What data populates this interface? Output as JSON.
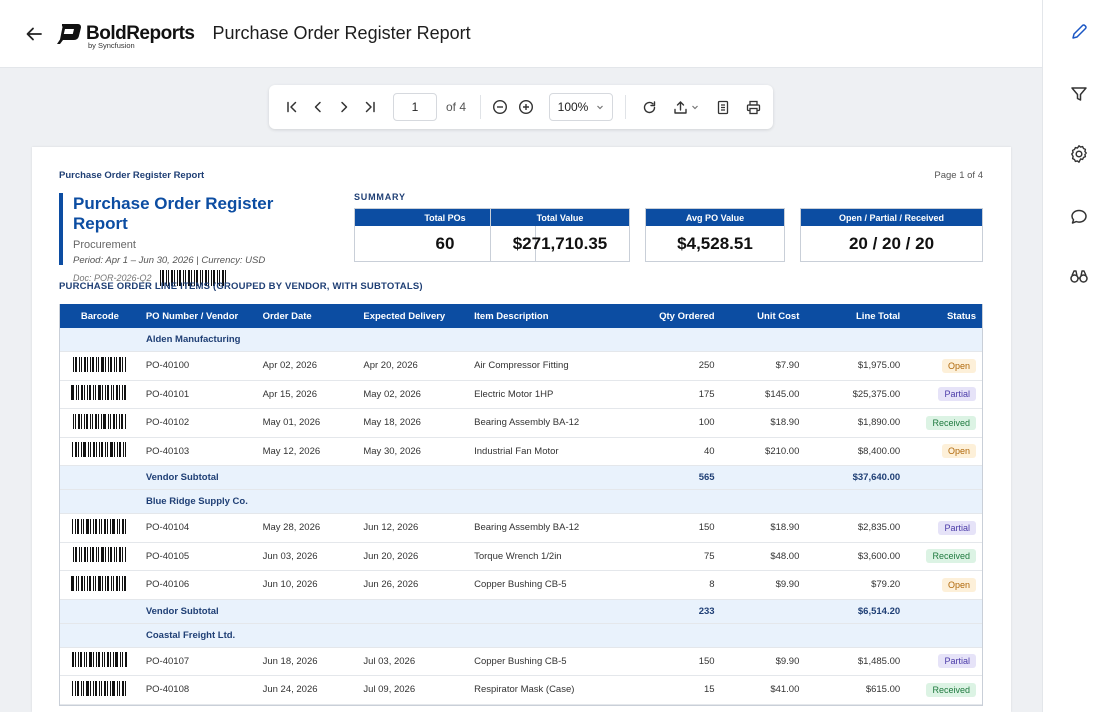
{
  "header": {
    "brand": "BoldReports",
    "brand_sub": "by Syncfusion",
    "title": "Purchase Order Register Report"
  },
  "toolbar": {
    "page_value": "1",
    "page_of": "of 4",
    "zoom": "100%"
  },
  "rail": {
    "icons": [
      "edit-icon",
      "filter-icon",
      "settings-icon",
      "comment-icon",
      "view-icon"
    ]
  },
  "report": {
    "header_left": "Purchase Order Register Report",
    "header_right": "Page 1 of 4",
    "title": "Purchase Order Register Report",
    "department": "Procurement",
    "period": "Period: Apr 1 – Jun 30, 2026  |  Currency: USD",
    "doc": "Doc: POR-2026-Q2",
    "summary_label": "SUMMARY",
    "kpis": [
      {
        "label": "Total POs",
        "value": "60"
      },
      {
        "label": "Total Value",
        "value": "$271,710.35"
      },
      {
        "label": "Avg PO Value",
        "value": "$4,528.51"
      },
      {
        "label": "Open / Partial / Received",
        "value": "20 / 20 / 20"
      }
    ],
    "section_title": "PURCHASE ORDER LINE ITEMS (GROUPED BY VENDOR, WITH SUBTOTALS)",
    "columns": [
      "Barcode",
      "PO Number / Vendor",
      "Order Date",
      "Expected Delivery",
      "Item Description",
      "Qty Ordered",
      "Unit Cost",
      "Line Total",
      "Status"
    ],
    "groups": [
      {
        "vendor": "Alden Manufacturing",
        "items": [
          {
            "po": "PO-40100",
            "order_date": "Apr 02, 2026",
            "expected": "Apr 20, 2026",
            "desc": "Air Compressor Fitting",
            "qty": "250",
            "unit": "$7.90",
            "total": "$1,975.00",
            "status": "Open"
          },
          {
            "po": "PO-40101",
            "order_date": "Apr 15, 2026",
            "expected": "May 02, 2026",
            "desc": "Electric Motor 1HP",
            "qty": "175",
            "unit": "$145.00",
            "total": "$25,375.00",
            "status": "Partial"
          },
          {
            "po": "PO-40102",
            "order_date": "May 01, 2026",
            "expected": "May 18, 2026",
            "desc": "Bearing Assembly BA-12",
            "qty": "100",
            "unit": "$18.90",
            "total": "$1,890.00",
            "status": "Received"
          },
          {
            "po": "PO-40103",
            "order_date": "May 12, 2026",
            "expected": "May 30, 2026",
            "desc": "Industrial Fan Motor",
            "qty": "40",
            "unit": "$210.00",
            "total": "$8,400.00",
            "status": "Open"
          }
        ],
        "subtotal_label": "Vendor Subtotal",
        "subtotal_qty": "565",
        "subtotal_total": "$37,640.00"
      },
      {
        "vendor": "Blue Ridge Supply Co.",
        "items": [
          {
            "po": "PO-40104",
            "order_date": "May 28, 2026",
            "expected": "Jun 12, 2026",
            "desc": "Bearing Assembly BA-12",
            "qty": "150",
            "unit": "$18.90",
            "total": "$2,835.00",
            "status": "Partial"
          },
          {
            "po": "PO-40105",
            "order_date": "Jun 03, 2026",
            "expected": "Jun 20, 2026",
            "desc": "Torque Wrench 1/2in",
            "qty": "75",
            "unit": "$48.00",
            "total": "$3,600.00",
            "status": "Received"
          },
          {
            "po": "PO-40106",
            "order_date": "Jun 10, 2026",
            "expected": "Jun 26, 2026",
            "desc": "Copper Bushing CB-5",
            "qty": "8",
            "unit": "$9.90",
            "total": "$79.20",
            "status": "Open"
          }
        ],
        "subtotal_label": "Vendor Subtotal",
        "subtotal_qty": "233",
        "subtotal_total": "$6,514.20"
      },
      {
        "vendor": "Coastal Freight Ltd.",
        "items": [
          {
            "po": "PO-40107",
            "order_date": "Jun 18, 2026",
            "expected": "Jul 03, 2026",
            "desc": "Copper Bushing CB-5",
            "qty": "150",
            "unit": "$9.90",
            "total": "$1,485.00",
            "status": "Partial"
          },
          {
            "po": "PO-40108",
            "order_date": "Jun 24, 2026",
            "expected": "Jul 09, 2026",
            "desc": "Respirator Mask (Case)",
            "qty": "15",
            "unit": "$41.00",
            "total": "$615.00",
            "status": "Received"
          }
        ]
      }
    ]
  }
}
